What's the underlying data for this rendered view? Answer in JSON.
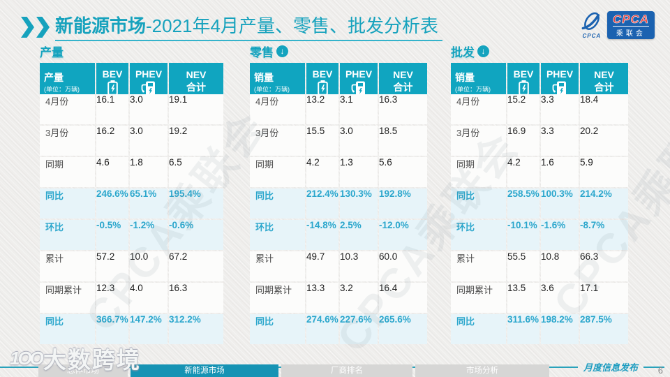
{
  "header": {
    "title_main": "新能源市场",
    "title_rest": "-2021年4月产量、零售、批发分析表"
  },
  "logo": {
    "emblem_caption": "CPCA",
    "org_abbr": "CPCA",
    "org_cn": "乘联会"
  },
  "sections": [
    {
      "id": "production",
      "label": "产量",
      "show_down_arrow": false,
      "table": {
        "corner_label": "产量",
        "unit": "(单位：万辆)",
        "columns": [
          {
            "label": "BEV",
            "icon": "battery-icon"
          },
          {
            "label": "PHEV",
            "icon": "charging-pump-icon"
          },
          {
            "label": "NEV",
            "label2": "合计"
          }
        ],
        "rows": [
          {
            "label": "4月份",
            "values": [
              "16.1",
              "3.0",
              "19.1"
            ],
            "highlight": false
          },
          {
            "label": "3月份",
            "values": [
              "16.2",
              "3.0",
              "19.2"
            ],
            "highlight": false
          },
          {
            "label": "同期",
            "values": [
              "4.6",
              "1.8",
              "6.5"
            ],
            "highlight": false
          },
          {
            "label": "同比",
            "values": [
              "246.6%",
              "65.1%",
              "195.4%"
            ],
            "highlight": true
          },
          {
            "label": "环比",
            "values": [
              "-0.5%",
              "-1.2%",
              "-0.6%"
            ],
            "highlight": true
          },
          {
            "label": "累计",
            "values": [
              "57.2",
              "10.0",
              "67.2"
            ],
            "highlight": false
          },
          {
            "label": "同期累计",
            "values": [
              "12.3",
              "4.0",
              "16.3"
            ],
            "highlight": false
          },
          {
            "label": "同比",
            "values": [
              "366.7%",
              "147.2%",
              "312.2%"
            ],
            "highlight": true
          }
        ]
      }
    },
    {
      "id": "retail",
      "label": "零售",
      "show_down_arrow": true,
      "table": {
        "corner_label": "销量",
        "unit": "(单位：万辆)",
        "columns": [
          {
            "label": "BEV",
            "icon": "battery-icon"
          },
          {
            "label": "PHEV",
            "icon": "charging-pump-icon"
          },
          {
            "label": "NEV",
            "label2": "合计"
          }
        ],
        "rows": [
          {
            "label": "4月份",
            "values": [
              "13.2",
              "3.1",
              "16.3"
            ],
            "highlight": false
          },
          {
            "label": "3月份",
            "values": [
              "15.5",
              "3.0",
              "18.5"
            ],
            "highlight": false
          },
          {
            "label": "同期",
            "values": [
              "4.2",
              "1.3",
              "5.6"
            ],
            "highlight": false
          },
          {
            "label": "同比",
            "values": [
              "212.4%",
              "130.3%",
              "192.8%"
            ],
            "highlight": true
          },
          {
            "label": "环比",
            "values": [
              "-14.8%",
              "2.5%",
              "-12.0%"
            ],
            "highlight": true
          },
          {
            "label": "累计",
            "values": [
              "49.7",
              "10.3",
              "60.0"
            ],
            "highlight": false
          },
          {
            "label": "同期累计",
            "values": [
              "13.3",
              "3.2",
              "16.4"
            ],
            "highlight": false
          },
          {
            "label": "同比",
            "values": [
              "274.6%",
              "227.6%",
              "265.6%"
            ],
            "highlight": true
          }
        ]
      }
    },
    {
      "id": "wholesale",
      "label": "批发",
      "show_down_arrow": true,
      "table": {
        "corner_label": "销量",
        "unit": "(单位：万辆)",
        "columns": [
          {
            "label": "BEV",
            "icon": "battery-icon"
          },
          {
            "label": "PHEV",
            "icon": "charging-pump-icon"
          },
          {
            "label": "NEV",
            "label2": "合计"
          }
        ],
        "rows": [
          {
            "label": "4月份",
            "values": [
              "15.2",
              "3.3",
              "18.4"
            ],
            "highlight": false
          },
          {
            "label": "3月份",
            "values": [
              "16.9",
              "3.3",
              "20.2"
            ],
            "highlight": false
          },
          {
            "label": "同期",
            "values": [
              "4.2",
              "1.6",
              "5.9"
            ],
            "highlight": false
          },
          {
            "label": "同比",
            "values": [
              "258.5%",
              "100.3%",
              "214.2%"
            ],
            "highlight": true
          },
          {
            "label": "环比",
            "values": [
              "-10.1%",
              "-1.6%",
              "-8.7%"
            ],
            "highlight": true
          },
          {
            "label": "累计",
            "values": [
              "55.5",
              "10.8",
              "66.3"
            ],
            "highlight": false
          },
          {
            "label": "同期累计",
            "values": [
              "13.5",
              "3.6",
              "17.1"
            ],
            "highlight": false
          },
          {
            "label": "同比",
            "values": [
              "311.6%",
              "198.2%",
              "287.5%"
            ],
            "highlight": true
          }
        ]
      }
    }
  ],
  "footer": {
    "note": "月度信息发布",
    "page_number": "6",
    "tabs": [
      {
        "label": "总体市场",
        "active": false
      },
      {
        "label": "新能源市场",
        "active": true
      },
      {
        "label": "厂商排名",
        "active": false
      },
      {
        "label": "市场分析",
        "active": false
      }
    ]
  },
  "watermarks": {
    "diagonal_text": "CPCA乘联会",
    "brand_text": "大数跨境",
    "brand_logo_text": "1OO"
  },
  "colors": {
    "accent_teal": "#10a5c0",
    "highlight_bg": "#e7f4f9",
    "highlight_text": "#2aa6cc",
    "logo_blue": "#1b62b0",
    "logo_red": "#e8413c",
    "tab_inactive": "#d6d6d5"
  }
}
